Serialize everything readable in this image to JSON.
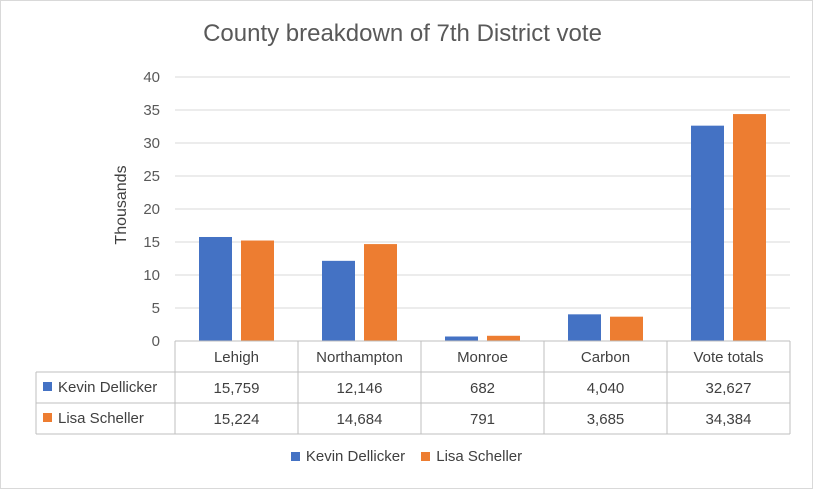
{
  "chart_data": {
    "type": "bar",
    "title": "County breakdown of 7th District vote",
    "ylabel": "Thousands",
    "xlabel": "",
    "ylim": [
      0,
      40
    ],
    "yticks": [
      0,
      5,
      10,
      15,
      20,
      25,
      30,
      35,
      40
    ],
    "grid": true,
    "legend_position": "bottom",
    "categories": [
      "Lehigh",
      "Northampton",
      "Monroe",
      "Carbon",
      "Vote totals"
    ],
    "series": [
      {
        "name": "Kevin Dellicker",
        "color": "#4472c4",
        "values": [
          15.759,
          12.146,
          0.682,
          4.04,
          32.627
        ],
        "labels": [
          "15,759",
          "12,146",
          "682",
          "4,040",
          "32,627"
        ]
      },
      {
        "name": "Lisa Scheller",
        "color": "#ed7d31",
        "values": [
          15.224,
          14.684,
          0.791,
          3.685,
          34.384
        ],
        "labels": [
          "15,224",
          "14,684",
          "791",
          "3,685",
          "34,384"
        ]
      }
    ]
  }
}
